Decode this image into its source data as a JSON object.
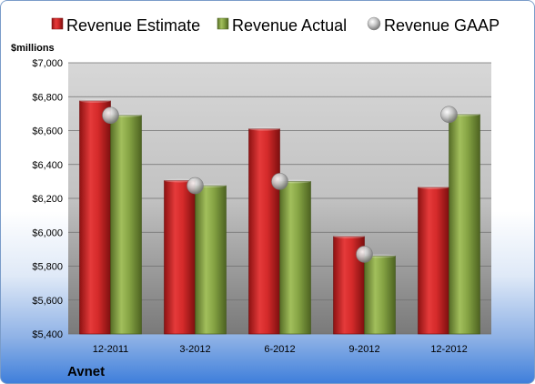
{
  "chart_data": {
    "type": "bar",
    "unit_label": "$millions",
    "company": "Avnet",
    "categories": [
      "12-2011",
      "3-2012",
      "6-2012",
      "9-2012",
      "12-2012"
    ],
    "series": [
      {
        "name": "Revenue Estimate",
        "kind": "bar",
        "color": "#d42a2a",
        "values": [
          6775,
          6305,
          6610,
          5975,
          6265
        ]
      },
      {
        "name": "Revenue Actual",
        "kind": "bar",
        "color": "#86a444",
        "values": [
          6690,
          6275,
          6300,
          5860,
          6695
        ]
      },
      {
        "name": "Revenue GAAP",
        "kind": "marker",
        "color": "#b8b8b8",
        "values": [
          6690,
          6275,
          6300,
          5870,
          6695
        ]
      }
    ],
    "ylim": [
      5400,
      7000
    ],
    "yticks": [
      5400,
      5600,
      5800,
      6000,
      6200,
      6400,
      6600,
      6800,
      7000
    ],
    "ytick_labels": [
      "$5,400",
      "$5,600",
      "$5,800",
      "$6,000",
      "$6,200",
      "$6,400",
      "$6,600",
      "$6,800",
      "$7,000"
    ],
    "grid": true,
    "legend": "top"
  }
}
